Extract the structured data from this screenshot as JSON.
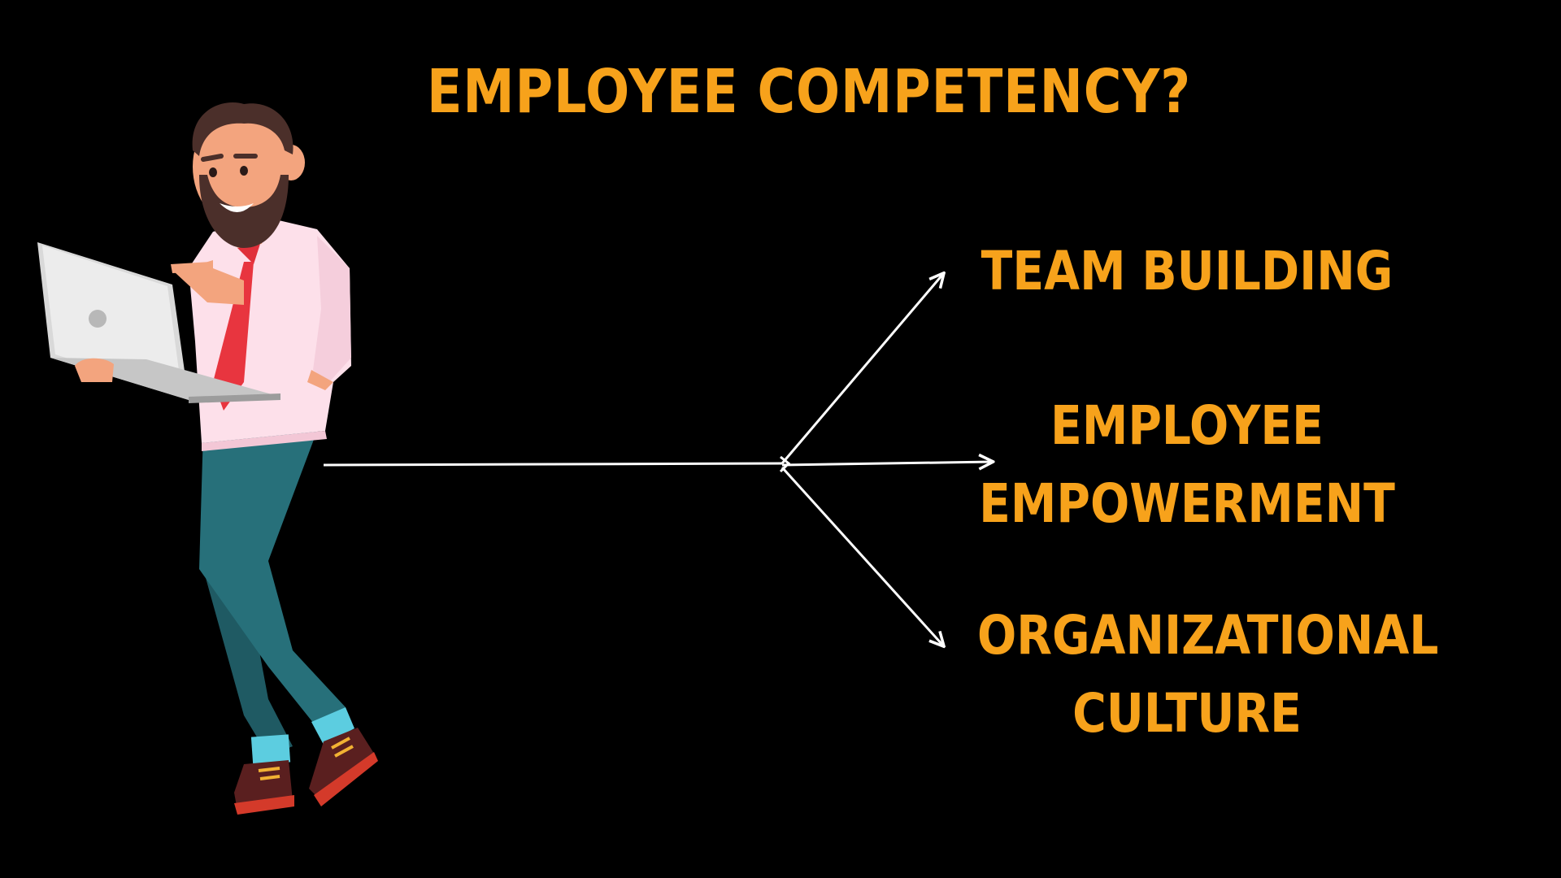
{
  "title": "EMPLOYEE COMPETENCY?",
  "branches": [
    {
      "lines": [
        "TEAM BUILDING"
      ]
    },
    {
      "lines": [
        "EMPLOYEE",
        "EMPOWERMENT"
      ]
    },
    {
      "lines": [
        "ORGANIZATIONAL",
        "CULTURE"
      ]
    }
  ],
  "colors": {
    "background": "#000000",
    "accent": "#F7A21B",
    "arrow": "#FFFFFF"
  },
  "illustration": "businessman-holding-laptop-pointing"
}
